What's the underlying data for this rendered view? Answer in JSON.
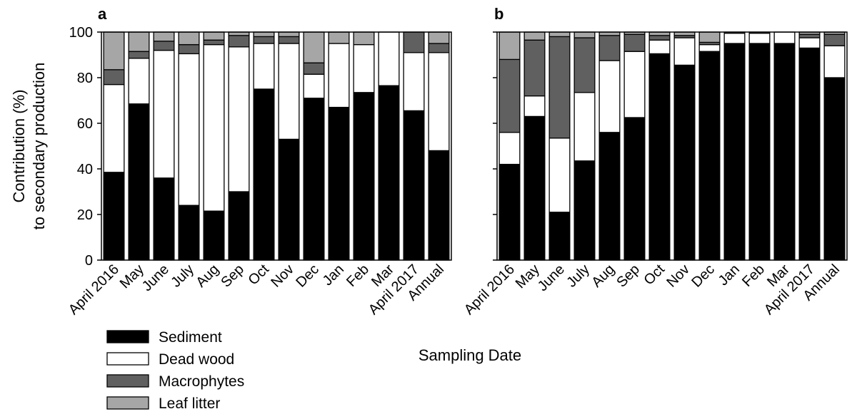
{
  "chart_data": [
    {
      "panel": "a",
      "type": "bar",
      "stacked": true,
      "categories": [
        "April 2016",
        "May",
        "June",
        "July",
        "Aug",
        "Sep",
        "Oct",
        "Nov",
        "Dec",
        "Jan",
        "Feb",
        "Mar",
        "April 2017",
        "Annual"
      ],
      "series": [
        {
          "name": "Sediment",
          "values": [
            38.5,
            68.5,
            36,
            24,
            21.5,
            30,
            75,
            53,
            71,
            67,
            73.5,
            76.5,
            65.5,
            48
          ]
        },
        {
          "name": "Dead wood",
          "values": [
            38.5,
            20,
            56,
            66.5,
            73,
            63.5,
            20,
            42,
            10.5,
            28,
            21,
            23.5,
            25.5,
            43
          ]
        },
        {
          "name": "Macrophytes",
          "values": [
            6.5,
            3,
            4,
            4,
            2,
            5,
            3,
            3,
            5,
            0,
            0,
            0,
            9,
            4
          ]
        },
        {
          "name": "Leaf litter",
          "values": [
            16.5,
            8.5,
            4,
            5.5,
            3.5,
            1.5,
            2,
            2,
            13.5,
            5,
            5.5,
            0,
            0,
            5
          ]
        }
      ],
      "ylabel": "Contribution (%)\nto secondary production",
      "ylim": [
        0,
        100
      ],
      "yticks": [
        0,
        20,
        40,
        60,
        80,
        100
      ]
    },
    {
      "panel": "b",
      "type": "bar",
      "stacked": true,
      "categories": [
        "April 2016",
        "May",
        "June",
        "July",
        "Aug",
        "Sep",
        "Oct",
        "Nov",
        "Dec",
        "Jan",
        "Feb",
        "Mar",
        "April 2017",
        "Annual"
      ],
      "series": [
        {
          "name": "Sediment",
          "values": [
            42,
            63,
            21,
            43.5,
            56,
            62.5,
            90.5,
            85.5,
            91.5,
            95,
            95,
            95,
            93,
            80
          ]
        },
        {
          "name": "Dead wood",
          "values": [
            14,
            9,
            32.5,
            30,
            31.5,
            29,
            6,
            12,
            3,
            4.5,
            4.5,
            5,
            4.5,
            14
          ]
        },
        {
          "name": "Macrophytes",
          "values": [
            32,
            24.5,
            44.5,
            24,
            11,
            7.5,
            2,
            1,
            1,
            0,
            0,
            0,
            1.5,
            5
          ]
        },
        {
          "name": "Leaf litter",
          "values": [
            12,
            3.5,
            2,
            2.5,
            1.5,
            1,
            1.5,
            1.5,
            4.5,
            0.5,
            0.5,
            0,
            1,
            1
          ]
        }
      ],
      "ylim": [
        0,
        100
      ],
      "yticks": [
        0,
        20,
        40,
        60,
        80,
        100
      ]
    }
  ],
  "xlabel": "Sampling Date",
  "ylabel_lines": [
    "Contribution (%)",
    "to secondary production"
  ],
  "legend": {
    "placement": "bottom-left",
    "entries": [
      {
        "name": "Sediment",
        "color": "#000000"
      },
      {
        "name": "Dead wood",
        "color": "#ffffff"
      },
      {
        "name": "Macrophytes",
        "color": "#606060"
      },
      {
        "name": "Leaf litter",
        "color": "#a6a6a6"
      }
    ]
  },
  "series_colors": {
    "Sediment": "#000000",
    "Dead wood": "#ffffff",
    "Macrophytes": "#606060",
    "Leaf litter": "#a6a6a6"
  }
}
